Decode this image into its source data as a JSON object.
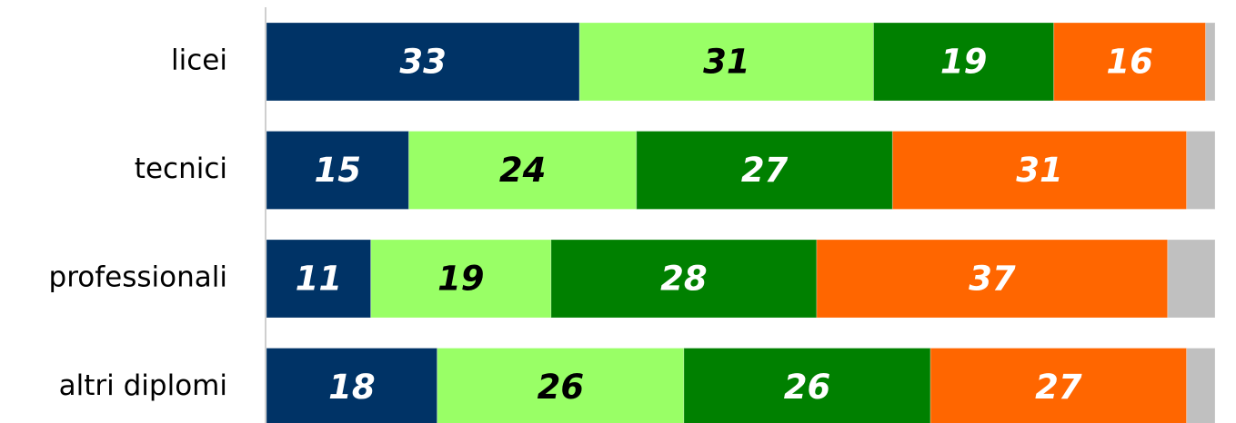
{
  "chart_data": {
    "type": "stacked-bar-horizontal",
    "categories": [
      "licei",
      "tecnici",
      "professionali",
      "altri diplomi"
    ],
    "xlim": [
      0,
      100
    ],
    "series": [
      {
        "color": "#003366",
        "label_color": "#ffffff",
        "values": [
          33,
          15,
          11,
          18
        ]
      },
      {
        "color": "#99ff66",
        "label_color": "#000000",
        "values": [
          31,
          24,
          19,
          26
        ]
      },
      {
        "color": "#008000",
        "label_color": "#ffffff",
        "values": [
          19,
          27,
          28,
          26
        ]
      },
      {
        "color": "#ff6600",
        "label_color": "#ffffff",
        "values": [
          16,
          31,
          37,
          27
        ]
      },
      {
        "color": "#c0c0c0",
        "values": [
          1,
          3,
          5,
          3
        ]
      }
    ]
  }
}
